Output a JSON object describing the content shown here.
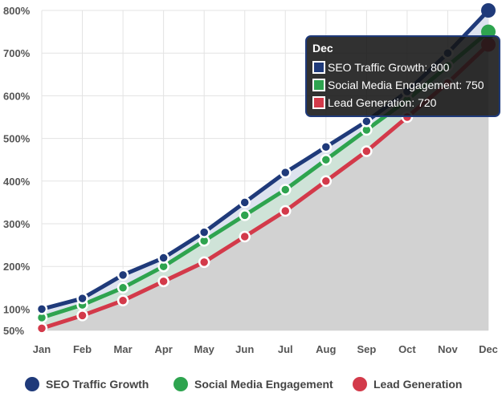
{
  "chart_data": {
    "type": "area",
    "categories": [
      "Jan",
      "Feb",
      "Mar",
      "Apr",
      "May",
      "Jun",
      "Jul",
      "Aug",
      "Sep",
      "Oct",
      "Nov",
      "Dec"
    ],
    "ylim": [
      50,
      800
    ],
    "yticks": [
      50,
      100,
      200,
      300,
      400,
      500,
      600,
      700,
      800
    ],
    "ytick_labels": [
      "50%",
      "100%",
      "200%",
      "300%",
      "400%",
      "500%",
      "600%",
      "700%",
      "800%"
    ],
    "grid": true,
    "legend_position": "bottom",
    "series": [
      {
        "name": "SEO Traffic Growth",
        "color": "#1f3a7a",
        "values": [
          100,
          125,
          180,
          220,
          280,
          350,
          420,
          480,
          540,
          610,
          700,
          800
        ]
      },
      {
        "name": "Social Media Engagement",
        "color": "#2ea44f",
        "values": [
          80,
          110,
          150,
          200,
          260,
          320,
          380,
          450,
          520,
          590,
          670,
          750
        ]
      },
      {
        "name": "Lead Generation",
        "color": "#d33a4a",
        "values": [
          55,
          85,
          120,
          165,
          210,
          270,
          330,
          400,
          470,
          550,
          630,
          720
        ]
      }
    ],
    "tooltip": {
      "title": "Dec",
      "lines": [
        "SEO Traffic Growth: 800",
        "Social Media Engagement: 750",
        "Lead Generation: 720"
      ]
    }
  }
}
